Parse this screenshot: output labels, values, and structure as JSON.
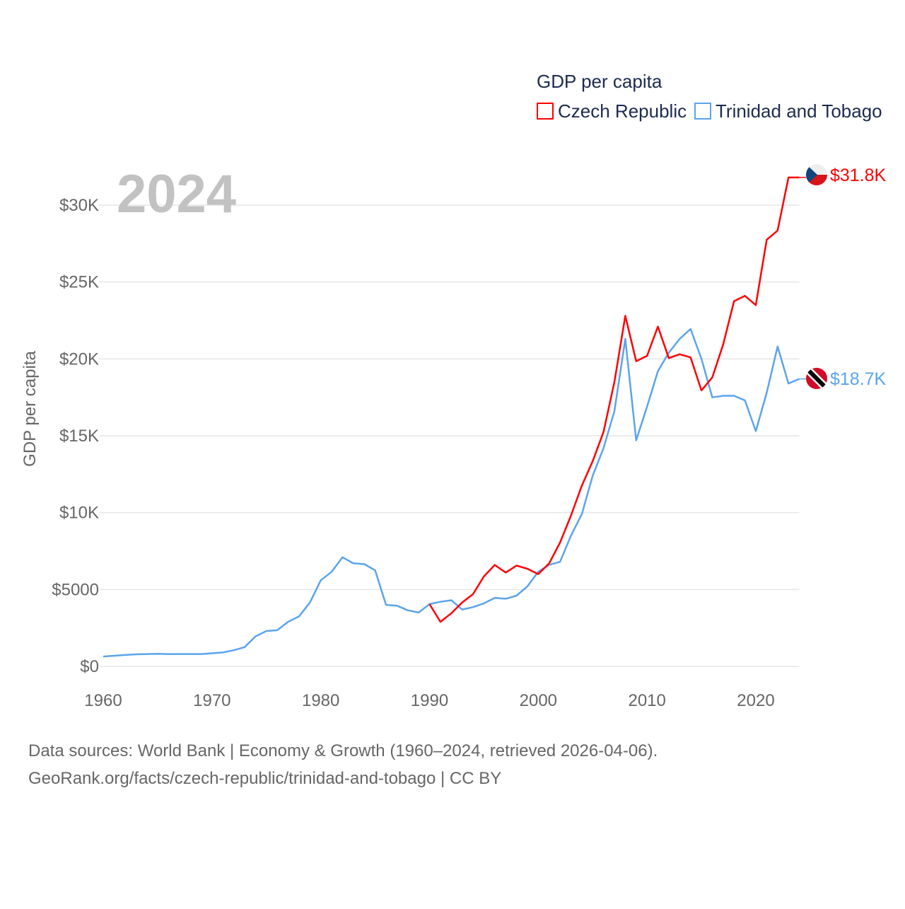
{
  "chart_data": {
    "type": "line",
    "title": "GDP per capita",
    "year_label": "2024",
    "ylabel": "GDP per capita",
    "xlabel": "",
    "xlim": [
      1960,
      2024
    ],
    "ylim": [
      0,
      33000
    ],
    "x_ticks": [
      1960,
      1970,
      1980,
      1990,
      2000,
      2010,
      2020
    ],
    "x_tick_labels": [
      "1960",
      "1970",
      "1980",
      "1990",
      "2000",
      "2010",
      "2020"
    ],
    "y_ticks": [
      0,
      5000,
      10000,
      15000,
      20000,
      25000,
      30000
    ],
    "y_tick_labels": [
      "$0",
      "$5000",
      "$10K",
      "$15K",
      "$20K",
      "$25K",
      "$30K"
    ],
    "grid": true,
    "legend_position": "top-right",
    "series": [
      {
        "name": "Czech Republic",
        "color": "#ff0000",
        "end_label": "$31.8K",
        "flag": "czech-flag",
        "start_year": 1990,
        "values": [
          4050,
          2900,
          3450,
          4150,
          4700,
          5850,
          6600,
          6100,
          6550,
          6350,
          6000,
          6700,
          8050,
          9800,
          11750,
          13350,
          15250,
          18500,
          22800,
          19850,
          20200,
          22100,
          20050,
          20300,
          20100,
          17950,
          18800,
          20950,
          23750,
          24100,
          23500,
          27750,
          28350,
          31800,
          31800
        ]
      },
      {
        "name": "Trinidad and Tobago",
        "color": "#5ba4ec",
        "end_label": "$18.7K",
        "flag": "trinidad-flag",
        "start_year": 1960,
        "values": [
          640,
          690,
          740,
          780,
          800,
          820,
          800,
          800,
          800,
          800,
          850,
          900,
          1050,
          1250,
          1950,
          2300,
          2350,
          2900,
          3250,
          4150,
          5600,
          6150,
          7100,
          6700,
          6650,
          6250,
          4000,
          3950,
          3650,
          3500,
          4050,
          4200,
          4300,
          3700,
          3850,
          4100,
          4450,
          4400,
          4600,
          5200,
          6150,
          6600,
          6800,
          8500,
          9900,
          12400,
          14200,
          16600,
          21300,
          14700,
          16900,
          19200,
          20400,
          21300,
          21950,
          20000,
          17500,
          17600,
          17600,
          17300,
          15300,
          17800,
          20800,
          18400,
          18700
        ]
      }
    ]
  },
  "footer": {
    "line1": "Data sources: World Bank | Economy & Growth (1960–2024, retrieved 2026-04-06).",
    "line2": "GeoRank.org/facts/czech-republic/trinidad-and-tobago | CC BY"
  }
}
